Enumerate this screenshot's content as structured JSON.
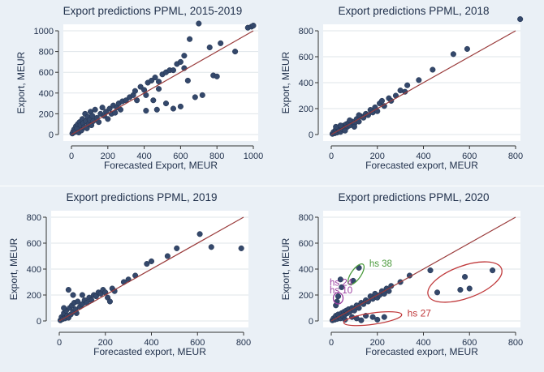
{
  "colors": {
    "panel_bg": "#eaf0f6",
    "plot_bg": "#ffffff",
    "grid": "#dfe5ea",
    "marker": "#34486b",
    "fit_line": "#9a3b3b",
    "text": "#1f2f4a",
    "hs38": "#4a9a3c",
    "hs24": "#9a3fa0",
    "hs10": "#9a3fa0",
    "hs27": "#c0393b"
  },
  "chart_data": [
    {
      "type": "scatter",
      "title": "Export predictions PPML, 2015-2019",
      "xlabel": "Forecasted Export, MEUR",
      "ylabel": "Export, MEUR",
      "xlim": [
        0,
        1000
      ],
      "ylim": [
        0,
        1000
      ],
      "xticks": [
        0,
        200,
        400,
        600,
        800,
        1000
      ],
      "yticks": [
        0,
        200,
        400,
        600,
        800,
        1000
      ],
      "fit_line": [
        [
          0,
          0
        ],
        [
          1000,
          1000
        ]
      ],
      "points": [
        [
          5,
          10
        ],
        [
          10,
          30
        ],
        [
          15,
          50
        ],
        [
          20,
          25
        ],
        [
          25,
          80
        ],
        [
          30,
          60
        ],
        [
          35,
          100
        ],
        [
          40,
          20
        ],
        [
          45,
          120
        ],
        [
          50,
          90
        ],
        [
          55,
          40
        ],
        [
          60,
          150
        ],
        [
          65,
          110
        ],
        [
          70,
          70
        ],
        [
          75,
          200
        ],
        [
          80,
          130
        ],
        [
          85,
          60
        ],
        [
          90,
          170
        ],
        [
          95,
          100
        ],
        [
          100,
          140
        ],
        [
          105,
          220
        ],
        [
          110,
          90
        ],
        [
          115,
          180
        ],
        [
          120,
          130
        ],
        [
          130,
          240
        ],
        [
          140,
          160
        ],
        [
          150,
          120
        ],
        [
          160,
          200
        ],
        [
          170,
          260
        ],
        [
          180,
          180
        ],
        [
          190,
          220
        ],
        [
          200,
          150
        ],
        [
          210,
          250
        ],
        [
          220,
          200
        ],
        [
          230,
          280
        ],
        [
          240,
          210
        ],
        [
          250,
          260
        ],
        [
          260,
          300
        ],
        [
          270,
          240
        ],
        [
          280,
          320
        ],
        [
          300,
          330
        ],
        [
          320,
          360
        ],
        [
          340,
          380
        ],
        [
          350,
          420
        ],
        [
          360,
          330
        ],
        [
          380,
          460
        ],
        [
          400,
          430
        ],
        [
          410,
          380
        ],
        [
          420,
          500
        ],
        [
          440,
          520
        ],
        [
          460,
          550
        ],
        [
          480,
          510
        ],
        [
          500,
          580
        ],
        [
          520,
          600
        ],
        [
          540,
          620
        ],
        [
          560,
          620
        ],
        [
          580,
          680
        ],
        [
          600,
          700
        ],
        [
          620,
          760
        ],
        [
          640,
          520
        ],
        [
          650,
          920
        ],
        [
          700,
          1070
        ],
        [
          720,
          380
        ],
        [
          760,
          840
        ],
        [
          780,
          570
        ],
        [
          800,
          560
        ],
        [
          820,
          880
        ],
        [
          900,
          800
        ],
        [
          970,
          1030
        ],
        [
          990,
          1040
        ],
        [
          1000,
          1050
        ],
        [
          470,
          240
        ],
        [
          520,
          300
        ],
        [
          560,
          250
        ],
        [
          600,
          270
        ],
        [
          480,
          440
        ],
        [
          450,
          330
        ],
        [
          410,
          230
        ],
        [
          620,
          640
        ],
        [
          680,
          360
        ]
      ]
    },
    {
      "type": "scatter",
      "title": "Export predictions PPML, 2018",
      "xlabel": "Forecasted export, MEUR",
      "ylabel": "Export, MEUR",
      "xlim": [
        0,
        800
      ],
      "ylim": [
        0,
        800
      ],
      "xticks": [
        0,
        200,
        400,
        600,
        800
      ],
      "yticks": [
        0,
        200,
        400,
        600,
        800
      ],
      "fit_line": [
        [
          0,
          0
        ],
        [
          800,
          800
        ]
      ],
      "points": [
        [
          5,
          5
        ],
        [
          10,
          20
        ],
        [
          15,
          10
        ],
        [
          20,
          40
        ],
        [
          25,
          15
        ],
        [
          30,
          50
        ],
        [
          35,
          30
        ],
        [
          40,
          20
        ],
        [
          45,
          60
        ],
        [
          50,
          40
        ],
        [
          55,
          70
        ],
        [
          60,
          50
        ],
        [
          65,
          80
        ],
        [
          70,
          60
        ],
        [
          75,
          90
        ],
        [
          80,
          70
        ],
        [
          90,
          100
        ],
        [
          100,
          80
        ],
        [
          110,
          120
        ],
        [
          120,
          100
        ],
        [
          130,
          140
        ],
        [
          140,
          130
        ],
        [
          150,
          160
        ],
        [
          160,
          150
        ],
        [
          170,
          190
        ],
        [
          180,
          170
        ],
        [
          190,
          210
        ],
        [
          200,
          180
        ],
        [
          210,
          240
        ],
        [
          220,
          260
        ],
        [
          230,
          220
        ],
        [
          250,
          280
        ],
        [
          260,
          260
        ],
        [
          280,
          300
        ],
        [
          300,
          340
        ],
        [
          320,
          330
        ],
        [
          330,
          380
        ],
        [
          380,
          420
        ],
        [
          440,
          500
        ],
        [
          530,
          620
        ],
        [
          590,
          660
        ],
        [
          820,
          890
        ],
        [
          20,
          60
        ],
        [
          40,
          70
        ],
        [
          60,
          30
        ],
        [
          80,
          110
        ],
        [
          100,
          60
        ],
        [
          120,
          150
        ]
      ]
    },
    {
      "type": "scatter",
      "title": "Export predictions PPML, 2019",
      "xlabel": "Forecasted export, MEUR",
      "ylabel": "Export, MEUR",
      "xlim": [
        0,
        800
      ],
      "ylim": [
        0,
        800
      ],
      "xticks": [
        0,
        200,
        400,
        600,
        800
      ],
      "yticks": [
        0,
        200,
        400,
        600,
        800
      ],
      "fit_line": [
        [
          0,
          0
        ],
        [
          800,
          800
        ]
      ],
      "points": [
        [
          5,
          5
        ],
        [
          10,
          30
        ],
        [
          15,
          15
        ],
        [
          20,
          60
        ],
        [
          25,
          20
        ],
        [
          30,
          80
        ],
        [
          35,
          40
        ],
        [
          40,
          25
        ],
        [
          45,
          100
        ],
        [
          50,
          50
        ],
        [
          55,
          120
        ],
        [
          60,
          70
        ],
        [
          65,
          140
        ],
        [
          70,
          90
        ],
        [
          75,
          60
        ],
        [
          80,
          150
        ],
        [
          90,
          110
        ],
        [
          100,
          130
        ],
        [
          110,
          160
        ],
        [
          120,
          140
        ],
        [
          130,
          180
        ],
        [
          140,
          160
        ],
        [
          150,
          200
        ],
        [
          160,
          190
        ],
        [
          170,
          220
        ],
        [
          180,
          210
        ],
        [
          190,
          240
        ],
        [
          200,
          220
        ],
        [
          210,
          180
        ],
        [
          220,
          150
        ],
        [
          230,
          250
        ],
        [
          240,
          230
        ],
        [
          280,
          300
        ],
        [
          300,
          320
        ],
        [
          330,
          350
        ],
        [
          380,
          440
        ],
        [
          400,
          460
        ],
        [
          470,
          500
        ],
        [
          510,
          560
        ],
        [
          610,
          670
        ],
        [
          660,
          570
        ],
        [
          790,
          560
        ],
        [
          40,
          240
        ],
        [
          60,
          200
        ],
        [
          20,
          100
        ],
        [
          100,
          200
        ]
      ]
    },
    {
      "type": "scatter",
      "title": "Export predictions PPML, 2020",
      "xlabel": "Forecasted export, MEUR",
      "ylabel": "Export, MEUR",
      "xlim": [
        0,
        800
      ],
      "ylim": [
        0,
        800
      ],
      "xticks": [
        0,
        200,
        400,
        600,
        800
      ],
      "yticks": [
        0,
        200,
        400,
        600,
        800
      ],
      "fit_line": [
        [
          0,
          0
        ],
        [
          800,
          800
        ]
      ],
      "annotations": [
        "hs 38",
        "hs 24",
        "hs 10",
        "hs 27"
      ],
      "points": [
        [
          5,
          5
        ],
        [
          10,
          20
        ],
        [
          15,
          10
        ],
        [
          20,
          40
        ],
        [
          25,
          15
        ],
        [
          30,
          50
        ],
        [
          35,
          30
        ],
        [
          40,
          20
        ],
        [
          45,
          60
        ],
        [
          50,
          40
        ],
        [
          55,
          70
        ],
        [
          60,
          50
        ],
        [
          65,
          80
        ],
        [
          70,
          60
        ],
        [
          75,
          90
        ],
        [
          80,
          70
        ],
        [
          90,
          100
        ],
        [
          100,
          80
        ],
        [
          110,
          120
        ],
        [
          120,
          100
        ],
        [
          130,
          140
        ],
        [
          140,
          130
        ],
        [
          150,
          160
        ],
        [
          160,
          150
        ],
        [
          170,
          190
        ],
        [
          180,
          170
        ],
        [
          190,
          210
        ],
        [
          200,
          180
        ],
        [
          210,
          200
        ],
        [
          220,
          230
        ],
        [
          230,
          210
        ],
        [
          240,
          250
        ],
        [
          250,
          230
        ],
        [
          260,
          270
        ],
        [
          300,
          300
        ],
        [
          340,
          350
        ],
        [
          430,
          390
        ],
        [
          20,
          120
        ],
        [
          25,
          150
        ],
        [
          30,
          190
        ],
        [
          45,
          260
        ],
        [
          40,
          320
        ],
        [
          95,
          310
        ],
        [
          120,
          410
        ],
        [
          130,
          5
        ],
        [
          230,
          30
        ],
        [
          460,
          220
        ],
        [
          560,
          240
        ],
        [
          580,
          340
        ],
        [
          600,
          250
        ],
        [
          700,
          390
        ],
        [
          60,
          10
        ],
        [
          90,
          30
        ],
        [
          110,
          20
        ],
        [
          150,
          40
        ],
        [
          180,
          30
        ],
        [
          200,
          10
        ]
      ]
    }
  ]
}
